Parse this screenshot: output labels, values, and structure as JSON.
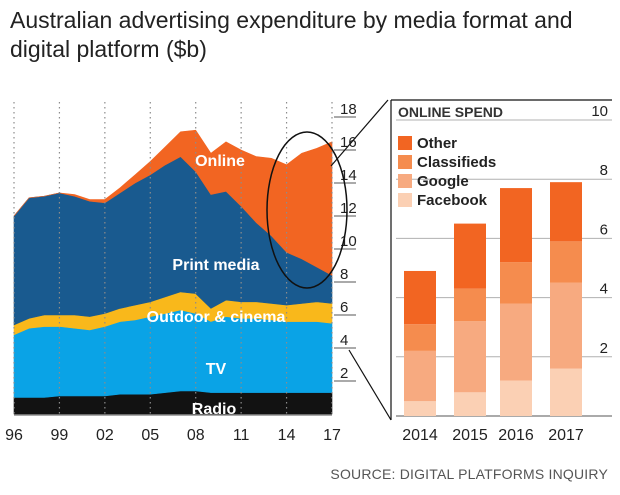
{
  "title": {
    "line1": "Australian advertising expenditure by media format and",
    "line2": "digital platform ($b)"
  },
  "source": "SOURCE: DIGITAL PLATFORMS INQUIRY",
  "colors": {
    "radio": "#121212",
    "tv": "#0aa3e6",
    "outdoor": "#f9b81b",
    "print": "#195a8f",
    "online": "#f26522",
    "other": "#f26522",
    "classifieds": "#f58c4e",
    "google": "#f7aa80",
    "facebook": "#fbd0b4"
  },
  "chart_data": [
    {
      "type": "area",
      "stacked": true,
      "x": [
        1996,
        1997,
        1998,
        1999,
        2000,
        2001,
        2002,
        2003,
        2004,
        2005,
        2006,
        2007,
        2008,
        2009,
        2010,
        2011,
        2012,
        2013,
        2014,
        2015,
        2016,
        2017
      ],
      "x_tick_labels": [
        "96",
        "99",
        "02",
        "05",
        "08",
        "11",
        "14",
        "17"
      ],
      "x_tick_values": [
        1996,
        1999,
        2002,
        2005,
        2008,
        2011,
        2014,
        2017
      ],
      "y_ticks": [
        2,
        4,
        6,
        8,
        10,
        12,
        14,
        16,
        18
      ],
      "ylim": [
        0,
        18.5
      ],
      "series": [
        {
          "name": "Radio",
          "values": [
            1.0,
            1.0,
            1.0,
            1.1,
            1.1,
            1.1,
            1.1,
            1.2,
            1.2,
            1.2,
            1.3,
            1.4,
            1.4,
            1.3,
            1.3,
            1.3,
            1.3,
            1.3,
            1.3,
            1.3,
            1.3,
            1.3
          ]
        },
        {
          "name": "TV",
          "values": [
            3.8,
            4.2,
            4.3,
            4.2,
            4.1,
            4.0,
            4.2,
            4.4,
            4.5,
            4.7,
            4.8,
            4.9,
            4.7,
            4.3,
            4.6,
            4.5,
            4.5,
            4.4,
            4.3,
            4.3,
            4.3,
            4.2
          ]
        },
        {
          "name": "Outdoor & cinema",
          "values": [
            0.6,
            0.6,
            0.7,
            0.7,
            0.8,
            0.8,
            0.8,
            0.8,
            0.9,
            0.9,
            1.0,
            1.1,
            1.2,
            0.8,
            1.0,
            1.0,
            1.0,
            1.0,
            1.0,
            1.1,
            1.2,
            1.2
          ]
        },
        {
          "name": "Print media",
          "values": [
            6.6,
            7.3,
            7.2,
            7.4,
            7.2,
            7.0,
            6.7,
            7.0,
            7.4,
            7.7,
            8.0,
            8.2,
            7.4,
            6.9,
            6.6,
            5.8,
            4.8,
            4.1,
            3.2,
            2.7,
            2.1,
            1.7
          ]
        },
        {
          "name": "Online",
          "values": [
            0.0,
            0.0,
            0.0,
            0.0,
            0.1,
            0.1,
            0.2,
            0.3,
            0.5,
            0.8,
            1.1,
            1.5,
            2.5,
            2.5,
            3.0,
            3.4,
            4.0,
            4.7,
            5.3,
            6.4,
            7.2,
            8.1
          ]
        }
      ],
      "labels": [
        "Online",
        "Print media",
        "Outdoor & cinema",
        "TV",
        "Radio"
      ]
    },
    {
      "type": "bar",
      "stacked": true,
      "title": "ONLINE SPEND",
      "categories": [
        "2014",
        "2015",
        "2016",
        "2017"
      ],
      "y_ticks": [
        2,
        4,
        6,
        8,
        10
      ],
      "ylim": [
        0,
        10
      ],
      "series": [
        {
          "name": "Facebook",
          "values": [
            0.5,
            0.8,
            1.2,
            1.6
          ]
        },
        {
          "name": "Google",
          "values": [
            1.7,
            2.4,
            2.6,
            2.9
          ]
        },
        {
          "name": "Classifieds",
          "values": [
            0.9,
            1.1,
            1.4,
            1.4
          ]
        },
        {
          "name": "Other",
          "values": [
            1.8,
            2.2,
            2.5,
            2.0
          ]
        }
      ],
      "legend": [
        "Other",
        "Classifieds",
        "Google",
        "Facebook"
      ],
      "legend_position": "top-left"
    }
  ]
}
